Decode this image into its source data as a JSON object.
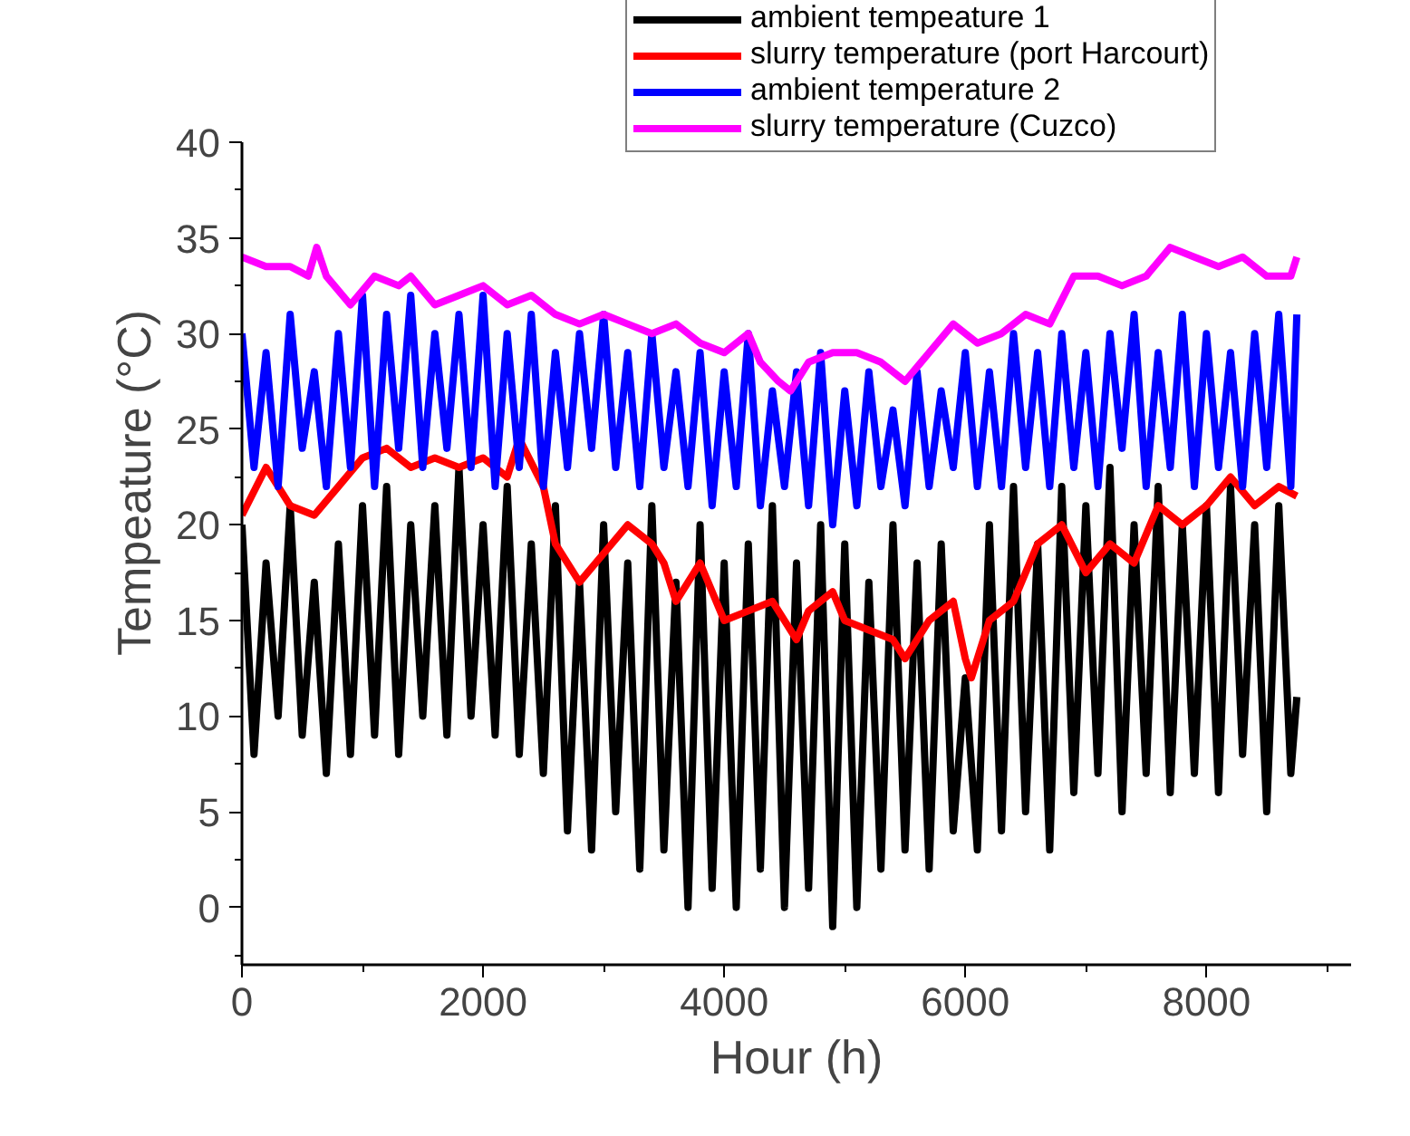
{
  "chart_data": {
    "type": "line",
    "xlabel": "Hour (h)",
    "ylabel": "Tempeature (°C)",
    "x": [
      0,
      100,
      200,
      300,
      400,
      500,
      600,
      700,
      800,
      900,
      1000,
      1100,
      1200,
      1300,
      1400,
      1500,
      1600,
      1700,
      1800,
      1900,
      2000,
      2100,
      2200,
      2300,
      2400,
      2500,
      2600,
      2700,
      2800,
      2900,
      3000,
      3100,
      3200,
      3300,
      3400,
      3500,
      3600,
      3700,
      3800,
      3900,
      4000,
      4100,
      4200,
      4300,
      4400,
      4500,
      4600,
      4700,
      4800,
      4900,
      5000,
      5100,
      5200,
      5300,
      5400,
      5500,
      5600,
      5700,
      5800,
      5900,
      6000,
      6100,
      6200,
      6300,
      6400,
      6500,
      6600,
      6700,
      6800,
      6900,
      7000,
      7100,
      7200,
      7300,
      7400,
      7500,
      7600,
      7700,
      7800,
      7900,
      8000,
      8100,
      8200,
      8300,
      8400,
      8500,
      8600,
      8700,
      8750
    ],
    "series": [
      {
        "name": "ambient tempeature 1",
        "color": "#000000",
        "values": [
          20,
          8,
          18,
          10,
          21,
          9,
          17,
          7,
          19,
          8,
          21,
          9,
          22,
          8,
          20,
          10,
          21,
          9,
          23,
          10,
          20,
          9,
          22,
          8,
          19,
          7,
          21,
          4,
          17,
          3,
          20,
          5,
          18,
          2,
          21,
          3,
          17,
          0,
          20,
          1,
          18,
          0,
          19,
          2,
          21,
          0,
          18,
          1,
          20,
          -1,
          19,
          0,
          17,
          2,
          20,
          3,
          18,
          2,
          19,
          4,
          12,
          3,
          20,
          4,
          22,
          5,
          19,
          3,
          22,
          6,
          21,
          7,
          23,
          5,
          20,
          7,
          22,
          6,
          20,
          7,
          21,
          6,
          22,
          8,
          20,
          5,
          21,
          7,
          11
        ]
      },
      {
        "name": "slurry temperature (port Harcourt)",
        "color": "#ff0000",
        "x": [
          0,
          200,
          400,
          600,
          800,
          1000,
          1200,
          1400,
          1600,
          1800,
          2000,
          2200,
          2300,
          2500,
          2600,
          2800,
          3000,
          3200,
          3400,
          3500,
          3600,
          3800,
          4000,
          4200,
          4400,
          4600,
          4700,
          4900,
          5000,
          5200,
          5400,
          5500,
          5700,
          5900,
          6000,
          6050,
          6200,
          6400,
          6600,
          6800,
          7000,
          7200,
          7400,
          7600,
          7800,
          8000,
          8200,
          8400,
          8600,
          8750
        ],
        "values": [
          20.5,
          23,
          21,
          20.5,
          22,
          23.5,
          24,
          23,
          23.5,
          23,
          23.5,
          22.5,
          24.5,
          22,
          19,
          17,
          18.5,
          20,
          19,
          18,
          16,
          18,
          15,
          15.5,
          16,
          14,
          15.5,
          16.5,
          15,
          14.5,
          14,
          13,
          15,
          16,
          13,
          12,
          15,
          16,
          19,
          20,
          17.5,
          19,
          18,
          21,
          20,
          21,
          22.5,
          21,
          22,
          21.5
        ]
      },
      {
        "name": "ambient temperature 2",
        "color": "#0000ff",
        "values": [
          30,
          23,
          29,
          22,
          31,
          24,
          28,
          22,
          30,
          23,
          32,
          22,
          31,
          24,
          32,
          23,
          30,
          24,
          31,
          23,
          32,
          22,
          30,
          23,
          31,
          22,
          29,
          23,
          30,
          24,
          31,
          23,
          29,
          22,
          30,
          23,
          28,
          22,
          29,
          21,
          28,
          22,
          30,
          21,
          27,
          22,
          28,
          21,
          29,
          20,
          27,
          21,
          28,
          22,
          26,
          21,
          28,
          22,
          27,
          23,
          29,
          22,
          28,
          22,
          30,
          23,
          29,
          22,
          30,
          23,
          29,
          22,
          30,
          24,
          31,
          22,
          29,
          23,
          31,
          22,
          30,
          23,
          29,
          22,
          30,
          23,
          31,
          22,
          31
        ]
      },
      {
        "name": "slurry temperature (Cuzco)",
        "color": "#ff00ff",
        "x": [
          0,
          200,
          400,
          550,
          620,
          700,
          900,
          1100,
          1300,
          1400,
          1600,
          1800,
          2000,
          2200,
          2400,
          2600,
          2800,
          3000,
          3200,
          3400,
          3600,
          3800,
          4000,
          4200,
          4300,
          4450,
          4550,
          4700,
          4900,
          5100,
          5300,
          5500,
          5700,
          5900,
          6100,
          6300,
          6500,
          6700,
          6900,
          7100,
          7300,
          7500,
          7700,
          7900,
          8100,
          8300,
          8500,
          8700,
          8750
        ],
        "values": [
          34,
          33.5,
          33.5,
          33,
          34.5,
          33,
          31.5,
          33,
          32.5,
          33,
          31.5,
          32,
          32.5,
          31.5,
          32,
          31,
          30.5,
          31,
          30.5,
          30,
          30.5,
          29.5,
          29,
          30,
          28.5,
          27.5,
          27,
          28.5,
          29,
          29,
          28.5,
          27.5,
          29,
          30.5,
          29.5,
          30,
          31,
          30.5,
          33,
          33,
          32.5,
          33,
          34.5,
          34,
          33.5,
          34,
          33,
          33,
          34
        ]
      }
    ],
    "xlim": [
      0,
      9200
    ],
    "xticks": [
      0,
      2000,
      4000,
      6000,
      8000
    ],
    "ylim": [
      -3,
      40
    ],
    "yticks": [
      0,
      5,
      10,
      15,
      20,
      25,
      30,
      35,
      40
    ],
    "grid": false,
    "legend": "top right",
    "line_style": "solid",
    "marker": "none"
  }
}
